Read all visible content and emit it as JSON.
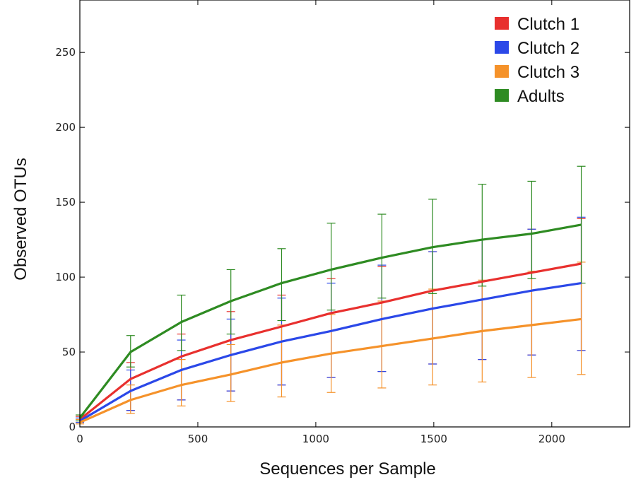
{
  "chart_data": {
    "type": "line",
    "title": "",
    "xlabel": "Sequences per Sample",
    "ylabel": "Observed OTUs",
    "xlim": [
      0,
      2330
    ],
    "ylim": [
      0,
      285
    ],
    "xticks": [
      0,
      500,
      1000,
      1500,
      2000
    ],
    "xtick_labels": [
      "0",
      "500",
      "1000",
      "1500",
      "2000"
    ],
    "yticks": [
      0,
      50,
      100,
      150,
      200,
      250
    ],
    "ytick_labels": [
      "0",
      "50",
      "100",
      "150",
      "200",
      "250"
    ],
    "x": [
      0,
      215,
      430,
      640,
      855,
      1065,
      1280,
      1495,
      1705,
      1915,
      2125
    ],
    "legend_position": "top-right",
    "series": [
      {
        "name": "Clutch 1",
        "color": "#e8302e",
        "values": [
          5,
          32,
          47,
          58,
          67,
          76,
          83,
          91,
          97,
          103,
          109
        ],
        "err_low": [
          4,
          11,
          18,
          24,
          28,
          33,
          37,
          42,
          45,
          48,
          51
        ],
        "err_high": [
          7,
          43,
          62,
          77,
          88,
          99,
          107,
          117,
          125,
          132,
          139
        ]
      },
      {
        "name": "Clutch 2",
        "color": "#2b48e8",
        "values": [
          4,
          24,
          38,
          48,
          57,
          64,
          72,
          79,
          85,
          91,
          96
        ],
        "err_low": [
          3,
          11,
          18,
          24,
          28,
          33,
          37,
          42,
          45,
          48,
          51
        ],
        "err_high": [
          6,
          38,
          58,
          72,
          86,
          96,
          108,
          117,
          125,
          132,
          140
        ]
      },
      {
        "name": "Clutch 3",
        "color": "#f5922a",
        "values": [
          3,
          18,
          28,
          35,
          43,
          49,
          54,
          59,
          64,
          68,
          72
        ],
        "err_low": [
          2,
          9,
          14,
          17,
          20,
          23,
          26,
          28,
          30,
          33,
          35
        ],
        "err_high": [
          5,
          28,
          45,
          55,
          68,
          75,
          84,
          92,
          98,
          104,
          110
        ]
      },
      {
        "name": "Adults",
        "color": "#2e8b22",
        "values": [
          6,
          50,
          70,
          84,
          96,
          105,
          113,
          120,
          125,
          129,
          135
        ],
        "err_low": [
          4,
          40,
          51,
          62,
          71,
          78,
          86,
          89,
          94,
          99,
          96
        ],
        "err_high": [
          8,
          61,
          88,
          105,
          119,
          136,
          142,
          152,
          162,
          164,
          174
        ]
      }
    ]
  }
}
